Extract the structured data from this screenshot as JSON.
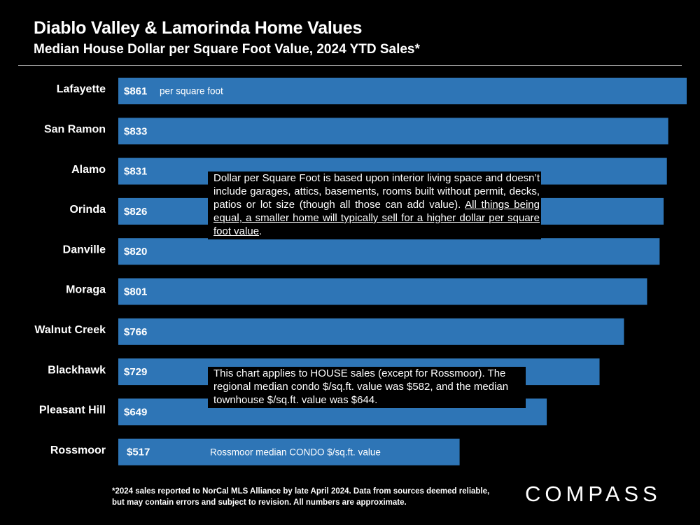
{
  "header": {
    "title": "Diablo Valley & Lamorinda Home Values",
    "subtitle": "Median House Dollar per Square Foot Value, 2024 YTD Sales*"
  },
  "chart_data": {
    "type": "bar",
    "orientation": "horizontal",
    "title": "Diablo Valley & Lamorinda Home Values",
    "subtitle": "Median House Dollar per Square Foot Value, 2024 YTD Sales*",
    "categories": [
      "Lafayette",
      "San Ramon",
      "Alamo",
      "Orinda",
      "Danville",
      "Moraga",
      "Walnut Creek",
      "Blackhawk",
      "Pleasant Hill",
      "Rossmoor"
    ],
    "values": [
      861,
      833,
      831,
      826,
      820,
      801,
      766,
      729,
      649,
      517
    ],
    "value_labels": [
      "$861",
      "$833",
      "$831",
      "$826",
      "$820",
      "$801",
      "$766",
      "$729",
      "$649",
      "$517"
    ],
    "annotations": [
      {
        "category": "Lafayette",
        "text": "per square foot"
      },
      {
        "category": "Rossmoor",
        "text": "Rossmoor median CONDO $/sq.ft. value"
      }
    ],
    "bar_color": "#2e75b6",
    "xlim": [
      0,
      861
    ],
    "grid": false,
    "legend": "none"
  },
  "notes": {
    "dpsf_plain": "Dollar per Square Foot is based upon interior living space and doesn’t include garages, attics, basements, rooms built without permit, decks, patios or lot size (though all those can add value). ",
    "dpsf_underlined": "All things being equal, a smaller home will typically sell for a higher dollar per square foot value",
    "dpsf_end": ".",
    "house_sales": "This chart applies to HOUSE sales (except for Rossmoor). The regional median condo $/sq.ft. value was $582, and the median townhouse $/sq.ft. value was $644."
  },
  "footnote": "*2024 sales reported to NorCal MLS Alliance by late April 2024. Data from sources deemed reliable, but may contain errors and subject to revision. All numbers are approximate.",
  "brand": {
    "logo_text": "COMPASS"
  },
  "colors": {
    "background": "#000000",
    "bar": "#2e75b6",
    "text": "#ffffff"
  }
}
